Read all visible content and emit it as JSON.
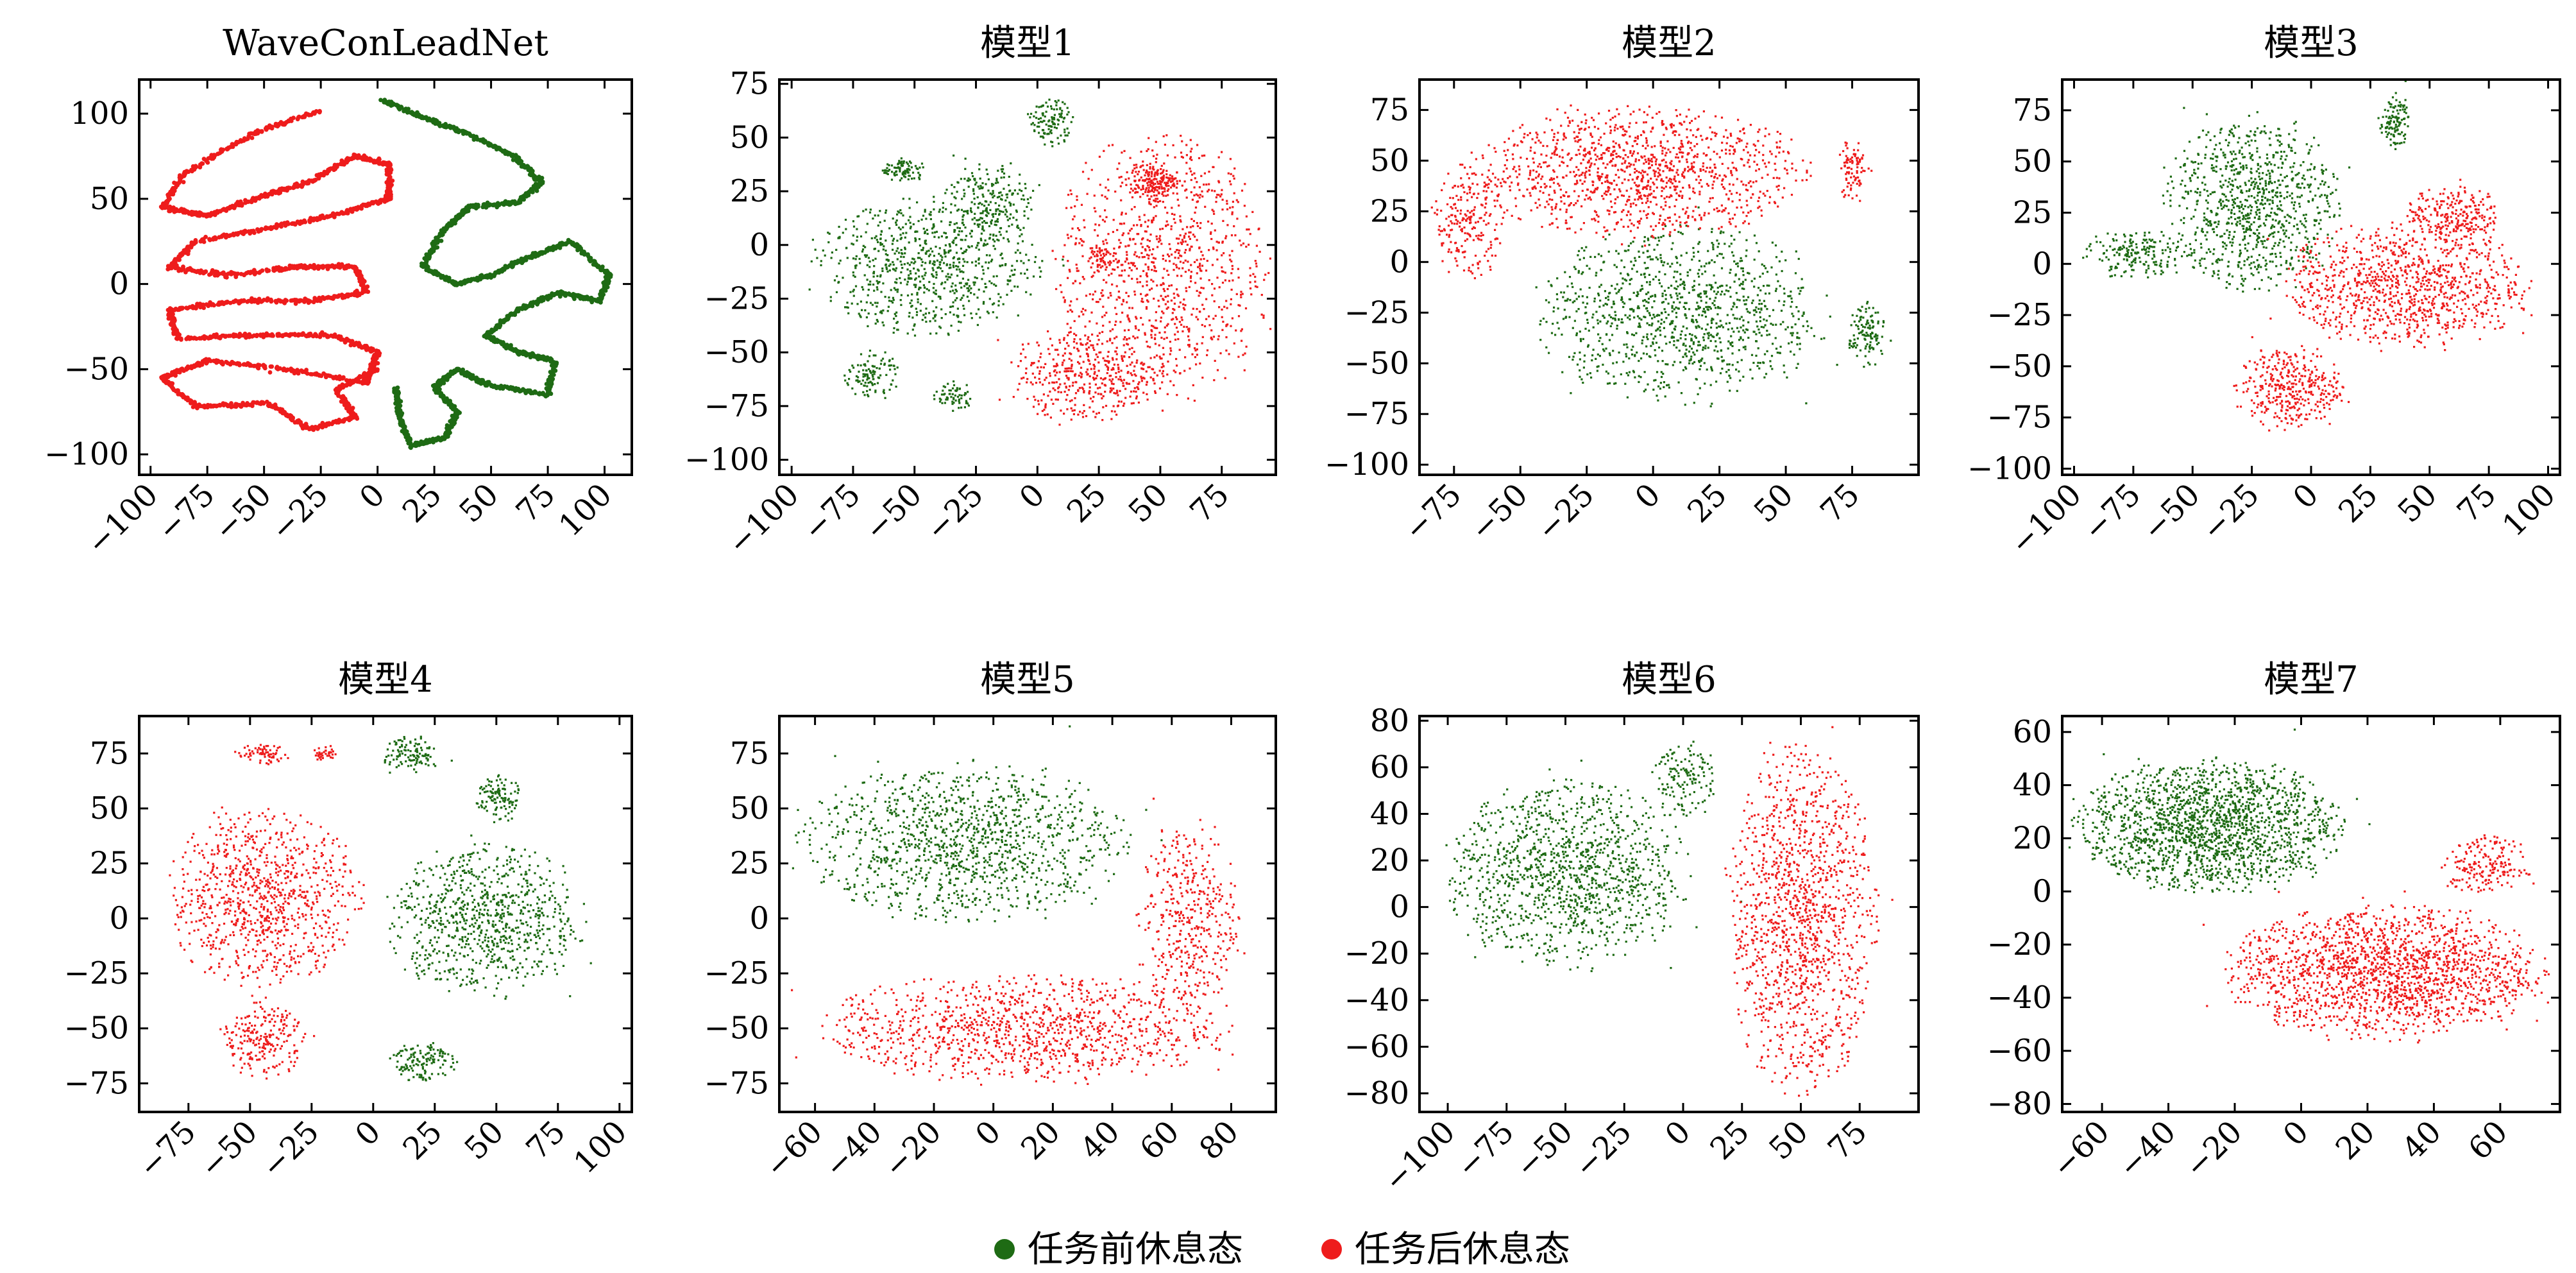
{
  "figure": {
    "legend": [
      {
        "label": "任务前休息态",
        "color": "#1e6b14"
      },
      {
        "label": "任务后休息态",
        "color": "#ee1c1c"
      }
    ]
  },
  "chart_data": [
    {
      "type": "scatter",
      "title": "WaveConLeadNet",
      "xlim": [
        -105,
        112
      ],
      "ylim": [
        -112,
        120
      ],
      "xticks": [
        -100,
        -75,
        -50,
        -25,
        0,
        25,
        50,
        75,
        100
      ],
      "xtick_labels": [
        "−100",
        "−75",
        "−50",
        "−25",
        "0",
        "25",
        "50",
        "75",
        "100"
      ],
      "yticks": [
        -100,
        -50,
        0,
        50,
        100
      ],
      "ytick_labels": [
        "−100",
        "−50",
        "0",
        "50",
        "100"
      ],
      "series": [
        {
          "name": "任务前休息态",
          "color": "#1e6b14",
          "kind": "curve",
          "path": [
            [
              2,
              108
            ],
            [
              20,
              98
            ],
            [
              40,
              88
            ],
            [
              60,
              75
            ],
            [
              72,
              60
            ],
            [
              62,
              48
            ],
            [
              40,
              45
            ],
            [
              28,
              30
            ],
            [
              20,
              10
            ],
            [
              35,
              0
            ],
            [
              50,
              5
            ],
            [
              65,
              15
            ],
            [
              85,
              25
            ],
            [
              102,
              5
            ],
            [
              98,
              -10
            ],
            [
              80,
              -5
            ],
            [
              62,
              -15
            ],
            [
              48,
              -30
            ],
            [
              62,
              -40
            ],
            [
              78,
              -45
            ],
            [
              75,
              -65
            ],
            [
              50,
              -60
            ],
            [
              35,
              -50
            ],
            [
              25,
              -60
            ],
            [
              35,
              -75
            ],
            [
              30,
              -90
            ],
            [
              15,
              -95
            ],
            [
              10,
              -80
            ],
            [
              8,
              -60
            ]
          ]
        },
        {
          "name": "任务后休息态",
          "color": "#ee1c1c",
          "kind": "curve",
          "path": [
            [
              -25,
              102
            ],
            [
              -55,
              88
            ],
            [
              -85,
              65
            ],
            [
              -95,
              45
            ],
            [
              -75,
              40
            ],
            [
              -50,
              52
            ],
            [
              -30,
              60
            ],
            [
              -10,
              75
            ],
            [
              5,
              70
            ],
            [
              5,
              50
            ],
            [
              -20,
              40
            ],
            [
              -50,
              32
            ],
            [
              -80,
              25
            ],
            [
              -92,
              10
            ],
            [
              -65,
              5
            ],
            [
              -35,
              10
            ],
            [
              -10,
              10
            ],
            [
              -5,
              -5
            ],
            [
              -30,
              -10
            ],
            [
              -60,
              -10
            ],
            [
              -92,
              -15
            ],
            [
              -88,
              -32
            ],
            [
              -55,
              -30
            ],
            [
              -20,
              -30
            ],
            [
              0,
              -40
            ],
            [
              -5,
              -58
            ],
            [
              -40,
              -50
            ],
            [
              -75,
              -45
            ],
            [
              -95,
              -55
            ],
            [
              -80,
              -72
            ],
            [
              -48,
              -70
            ],
            [
              -30,
              -85
            ],
            [
              -10,
              -78
            ],
            [
              -18,
              -62
            ],
            [
              0,
              -50
            ]
          ]
        }
      ]
    },
    {
      "type": "scatter",
      "title": "模型1",
      "xlim": [
        -105,
        97
      ],
      "ylim": [
        -107,
        77
      ],
      "xticks": [
        -100,
        -75,
        -50,
        -25,
        0,
        25,
        50,
        75
      ],
      "xtick_labels": [
        "−100",
        "−75",
        "−50",
        "−25",
        "0",
        "25",
        "50",
        "75"
      ],
      "yticks": [
        -100,
        -75,
        -50,
        -25,
        0,
        25,
        50,
        75
      ],
      "ytick_labels": [
        "−100",
        "−75",
        "−50",
        "−25",
        "0",
        "25",
        "50",
        "75"
      ],
      "series": [
        {
          "name": "任务前休息态",
          "color": "#1e6b14",
          "kind": "clusters",
          "clusters": [
            [
              -55,
              35,
              8,
              5,
              200
            ],
            [
              5,
              58,
              8,
              10,
              260
            ],
            [
              -45,
              -10,
              40,
              28,
              1700
            ],
            [
              -20,
              20,
              16,
              18,
              500
            ],
            [
              -68,
              -60,
              10,
              10,
              250
            ],
            [
              -35,
              -70,
              8,
              6,
              140
            ]
          ]
        },
        {
          "name": "任务后休息态",
          "color": "#ee1c1c",
          "kind": "clusters",
          "clusters": [
            [
              50,
              -10,
              38,
              55,
              2200
            ],
            [
              20,
              -60,
              28,
              20,
              900
            ],
            [
              45,
              30,
              10,
              8,
              250
            ],
            [
              50,
              30,
              6,
              6,
              120
            ],
            [
              25,
              -5,
              6,
              6,
              120
            ]
          ]
        }
      ]
    },
    {
      "type": "scatter",
      "title": "模型2",
      "xlim": [
        -88,
        100
      ],
      "ylim": [
        -105,
        90
      ],
      "xticks": [
        -75,
        -50,
        -25,
        0,
        25,
        50,
        75
      ],
      "xtick_labels": [
        "−75",
        "−50",
        "−25",
        "0",
        "25",
        "50",
        "75"
      ],
      "yticks": [
        -100,
        -75,
        -50,
        -25,
        0,
        25,
        50,
        75
      ],
      "ytick_labels": [
        "−100",
        "−75",
        "−50",
        "−25",
        "0",
        "25",
        "50",
        "75"
      ],
      "series": [
        {
          "name": "任务前休息态",
          "color": "#1e6b14",
          "kind": "clusters",
          "clusters": [
            [
              10,
              -25,
              48,
              38,
              2400
            ],
            [
              80,
              -35,
              6,
              15,
              260
            ]
          ]
        },
        {
          "name": "任务后休息态",
          "color": "#ee1c1c",
          "kind": "clusters",
          "clusters": [
            [
              -5,
              45,
              55,
              28,
              2600
            ],
            [
              -70,
              20,
              12,
              25,
              500
            ],
            [
              75,
              45,
              5,
              15,
              200
            ]
          ]
        }
      ]
    },
    {
      "type": "scatter",
      "title": "模型3",
      "xlim": [
        -105,
        105
      ],
      "ylim": [
        -103,
        90
      ],
      "xticks": [
        -100,
        -75,
        -50,
        -25,
        0,
        25,
        50,
        75,
        100
      ],
      "xtick_labels": [
        "−100",
        "−75",
        "−50",
        "−25",
        "0",
        "25",
        "50",
        "75",
        "100"
      ],
      "yticks": [
        -100,
        -75,
        -50,
        -25,
        0,
        25,
        50,
        75
      ],
      "ytick_labels": [
        "−100",
        "−75",
        "−50",
        "−25",
        "0",
        "25",
        "50",
        "75"
      ],
      "series": [
        {
          "name": "任务前休息态",
          "color": "#1e6b14",
          "kind": "clusters",
          "clusters": [
            [
              -25,
              30,
              32,
              38,
              2000
            ],
            [
              35,
              70,
              6,
              12,
              250
            ],
            [
              -75,
              5,
              20,
              10,
              400
            ]
          ]
        },
        {
          "name": "任务后休息态",
          "color": "#ee1c1c",
          "kind": "clusters",
          "clusters": [
            [
              40,
              -10,
              45,
              28,
              2200
            ],
            [
              -10,
              -60,
              20,
              18,
              800
            ],
            [
              60,
              25,
              18,
              12,
              500
            ]
          ]
        }
      ]
    },
    {
      "type": "scatter",
      "title": "模型4",
      "xlim": [
        -95,
        105
      ],
      "ylim": [
        -88,
        92
      ],
      "xticks": [
        -75,
        -50,
        -25,
        0,
        25,
        50,
        75,
        100
      ],
      "xtick_labels": [
        "−75",
        "−50",
        "−25",
        "0",
        "25",
        "50",
        "75",
        "100"
      ],
      "yticks": [
        -75,
        -50,
        -25,
        0,
        25,
        50,
        75
      ],
      "ytick_labels": [
        "−75",
        "−50",
        "−25",
        "0",
        "25",
        "50",
        "75"
      ],
      "series": [
        {
          "name": "任务前休息态",
          "color": "#1e6b14",
          "kind": "clusters",
          "clusters": [
            [
              45,
              0,
              35,
              30,
              1800
            ],
            [
              15,
              75,
              10,
              8,
              250
            ],
            [
              50,
              55,
              8,
              10,
              250
            ],
            [
              20,
              -65,
              12,
              8,
              300
            ]
          ]
        },
        {
          "name": "任务后休息态",
          "color": "#ee1c1c",
          "kind": "clusters",
          "clusters": [
            [
              -45,
              10,
              35,
              35,
              2000
            ],
            [
              -45,
              -55,
              15,
              15,
              500
            ],
            [
              -45,
              75,
              10,
              4,
              150
            ],
            [
              -20,
              75,
              5,
              3,
              80
            ]
          ]
        }
      ]
    },
    {
      "type": "scatter",
      "title": "模型5",
      "xlim": [
        -72,
        95
      ],
      "ylim": [
        -88,
        92
      ],
      "xticks": [
        -60,
        -40,
        -20,
        0,
        20,
        40,
        60,
        80
      ],
      "xtick_labels": [
        "−60",
        "−40",
        "−20",
        "0",
        "20",
        "40",
        "60",
        "80"
      ],
      "yticks": [
        -75,
        -50,
        -25,
        0,
        25,
        50,
        75
      ],
      "ytick_labels": [
        "−75",
        "−50",
        "−25",
        "0",
        "25",
        "50",
        "75"
      ],
      "series": [
        {
          "name": "任务前休息态",
          "color": "#1e6b14",
          "kind": "clusters",
          "clusters": [
            [
              -10,
              35,
              48,
              32,
              2600
            ]
          ]
        },
        {
          "name": "任务后休息态",
          "color": "#ee1c1c",
          "kind": "clusters",
          "clusters": [
            [
              10,
              -50,
              60,
              22,
              2400
            ],
            [
              65,
              0,
              15,
              40,
              900
            ]
          ]
        }
      ]
    },
    {
      "type": "scatter",
      "title": "模型6",
      "xlim": [
        -112,
        100
      ],
      "ylim": [
        -88,
        82
      ],
      "xticks": [
        -100,
        -75,
        -50,
        -25,
        0,
        25,
        50,
        75
      ],
      "xtick_labels": [
        "−100",
        "−75",
        "−50",
        "−25",
        "0",
        "25",
        "50",
        "75"
      ],
      "yticks": [
        -80,
        -60,
        -40,
        -20,
        0,
        20,
        40,
        60,
        80
      ],
      "ytick_labels": [
        "−80",
        "−60",
        "−40",
        "−20",
        "0",
        "20",
        "40",
        "60",
        "80"
      ],
      "series": [
        {
          "name": "任务前休息态",
          "color": "#1e6b14",
          "kind": "clusters",
          "clusters": [
            [
              -50,
              15,
              45,
              35,
              2600
            ],
            [
              0,
              55,
              12,
              15,
              300
            ]
          ]
        },
        {
          "name": "任务后休息态",
          "color": "#ee1c1c",
          "kind": "clusters",
          "clusters": [
            [
              50,
              -5,
              28,
              65,
              2800
            ]
          ]
        }
      ]
    },
    {
      "type": "scatter",
      "title": "模型7",
      "xlim": [
        -72,
        78
      ],
      "ylim": [
        -83,
        66
      ],
      "xticks": [
        -60,
        -40,
        -20,
        0,
        20,
        40,
        60
      ],
      "xtick_labels": [
        "−60",
        "−40",
        "−20",
        "0",
        "20",
        "40",
        "60"
      ],
      "yticks": [
        -80,
        -60,
        -40,
        -20,
        0,
        20,
        40,
        60
      ],
      "ytick_labels": [
        "−80",
        "−60",
        "−40",
        "−20",
        "0",
        "20",
        "40",
        "60"
      ],
      "series": [
        {
          "name": "任务前休息态",
          "color": "#1e6b14",
          "kind": "clusters",
          "clusters": [
            [
              -28,
              25,
              35,
              22,
              3800
            ]
          ]
        },
        {
          "name": "任务后休息态",
          "color": "#ee1c1c",
          "kind": "clusters",
          "clusters": [
            [
              25,
              -30,
              42,
              22,
              3800
            ],
            [
              55,
              10,
              12,
              10,
              400
            ]
          ]
        }
      ]
    }
  ]
}
